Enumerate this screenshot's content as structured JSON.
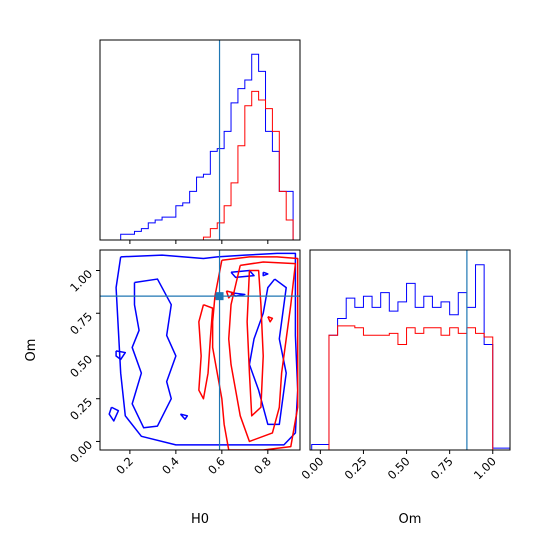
{
  "chart_data": {
    "type": "corner",
    "parameters": [
      "H0",
      "Om"
    ],
    "truth": {
      "H0": 0.59,
      "Om": 0.85,
      "color": "#1f77b4"
    },
    "colors": {
      "blue": "#0000ff",
      "red": "#ff0000",
      "truth": "#1f77b4"
    },
    "panels": {
      "hist_H0": {
        "xlim": [
          0.07,
          0.94
        ],
        "edges": [
          0.1,
          0.13,
          0.16,
          0.19,
          0.22,
          0.25,
          0.28,
          0.31,
          0.34,
          0.37,
          0.4,
          0.43,
          0.46,
          0.49,
          0.52,
          0.55,
          0.58,
          0.61,
          0.64,
          0.67,
          0.7,
          0.73,
          0.76,
          0.79,
          0.82,
          0.85,
          0.88,
          0.91,
          0.94
        ],
        "series": [
          {
            "color": "blue",
            "values": [
              0,
              0,
              0.02,
              0.02,
              0.03,
              0.04,
              0.06,
              0.07,
              0.08,
              0.08,
              0.12,
              0.13,
              0.17,
              0.22,
              0.23,
              0.31,
              0.32,
              0.38,
              0.48,
              0.53,
              0.56,
              0.65,
              0.59,
              0.38,
              0.31,
              0.17,
              0.17,
              0.0
            ]
          },
          {
            "color": "red",
            "values": [
              0,
              0,
              0,
              0,
              0,
              0,
              0,
              0,
              0,
              0,
              0,
              0,
              0,
              0,
              0.01,
              0.04,
              0.06,
              0.12,
              0.2,
              0.33,
              0.47,
              0.52,
              0.49,
              0.46,
              0.38,
              0.17,
              0.07,
              0.0
            ]
          }
        ]
      },
      "hist_Om": {
        "xlim": [
          -0.06,
          1.1
        ],
        "edges": [
          -0.05,
          0.0,
          0.05,
          0.1,
          0.15,
          0.2,
          0.25,
          0.3,
          0.35,
          0.4,
          0.45,
          0.5,
          0.55,
          0.6,
          0.65,
          0.7,
          0.75,
          0.8,
          0.85,
          0.9,
          0.95,
          1.0,
          1.05,
          1.1
        ],
        "series": [
          {
            "color": "blue",
            "values": [
              0.03,
              0.03,
              0.62,
              0.71,
              0.82,
              0.77,
              0.83,
              0.77,
              0.85,
              0.75,
              0.8,
              0.9,
              0.77,
              0.83,
              0.77,
              0.8,
              0.73,
              0.85,
              0.77,
              1.0,
              0.57,
              0.01,
              0.01
            ]
          },
          {
            "color": "red",
            "values": [
              0,
              0,
              0.62,
              0.67,
              0.67,
              0.66,
              0.62,
              0.62,
              0.62,
              0.63,
              0.57,
              0.66,
              0.63,
              0.66,
              0.66,
              0.62,
              0.66,
              0.63,
              0.66,
              0.63,
              0.61,
              0,
              0
            ]
          }
        ]
      },
      "scatter_H0_Om": {
        "xlim": [
          0.07,
          0.94
        ],
        "ylim": [
          -0.05,
          1.12
        ],
        "contours": [
          {
            "color": "blue",
            "points": [
              [
                0.16,
                1.08
              ],
              [
                0.34,
                1.09
              ],
              [
                0.52,
                1.07
              ],
              [
                0.58,
                1.08
              ],
              [
                0.7,
                1.09
              ],
              [
                0.84,
                1.1
              ],
              [
                0.92,
                1.1
              ],
              [
                0.92,
                0.62
              ],
              [
                0.93,
                0.3
              ],
              [
                0.92,
                0.05
              ],
              [
                0.87,
                -0.02
              ],
              [
                0.72,
                -0.02
              ],
              [
                0.55,
                -0.02
              ],
              [
                0.4,
                -0.02
              ],
              [
                0.25,
                0.03
              ],
              [
                0.18,
                0.15
              ],
              [
                0.16,
                0.4
              ],
              [
                0.15,
                0.65
              ],
              [
                0.14,
                0.9
              ],
              [
                0.16,
                1.08
              ]
            ]
          },
          {
            "color": "blue",
            "points": [
              [
                0.22,
                0.93
              ],
              [
                0.32,
                0.95
              ],
              [
                0.38,
                0.8
              ],
              [
                0.36,
                0.62
              ],
              [
                0.4,
                0.5
              ],
              [
                0.36,
                0.35
              ],
              [
                0.38,
                0.25
              ],
              [
                0.32,
                0.09
              ],
              [
                0.26,
                0.08
              ],
              [
                0.21,
                0.22
              ],
              [
                0.25,
                0.4
              ],
              [
                0.21,
                0.55
              ],
              [
                0.24,
                0.65
              ],
              [
                0.22,
                0.8
              ],
              [
                0.22,
                0.93
              ]
            ]
          },
          {
            "color": "blue",
            "points": [
              [
                0.83,
                0.95
              ],
              [
                0.88,
                0.9
              ],
              [
                0.85,
                0.6
              ],
              [
                0.88,
                0.4
              ],
              [
                0.85,
                0.1
              ],
              [
                0.8,
                0.1
              ],
              [
                0.76,
                0.3
              ],
              [
                0.72,
                0.45
              ],
              [
                0.74,
                0.6
              ],
              [
                0.78,
                0.75
              ],
              [
                0.8,
                0.9
              ],
              [
                0.83,
                0.95
              ]
            ]
          },
          {
            "color": "blue",
            "points": [
              [
                0.64,
                0.99
              ],
              [
                0.72,
                1.0
              ],
              [
                0.74,
                0.97
              ],
              [
                0.66,
                0.96
              ],
              [
                0.64,
                0.99
              ]
            ]
          },
          {
            "color": "blue",
            "points": [
              [
                0.14,
                0.53
              ],
              [
                0.18,
                0.52
              ],
              [
                0.16,
                0.48
              ],
              [
                0.14,
                0.5
              ],
              [
                0.14,
                0.53
              ]
            ]
          },
          {
            "color": "blue",
            "points": [
              [
                0.12,
                0.2
              ],
              [
                0.15,
                0.18
              ],
              [
                0.13,
                0.12
              ],
              [
                0.11,
                0.16
              ],
              [
                0.12,
                0.2
              ]
            ]
          },
          {
            "color": "blue",
            "points": [
              [
                0.42,
                0.16
              ],
              [
                0.45,
                0.15
              ],
              [
                0.44,
                0.13
              ],
              [
                0.42,
                0.16
              ]
            ]
          },
          {
            "color": "blue",
            "points": [
              [
                0.64,
                0.87
              ],
              [
                0.7,
                0.86
              ],
              [
                0.66,
                0.85
              ],
              [
                0.64,
                0.87
              ]
            ]
          },
          {
            "color": "blue",
            "points": [
              [
                0.78,
                0.99
              ],
              [
                0.8,
                0.98
              ],
              [
                0.78,
                0.97
              ],
              [
                0.78,
                0.99
              ]
            ]
          },
          {
            "color": "red",
            "points": [
              [
                0.6,
                1.06
              ],
              [
                0.72,
                1.08
              ],
              [
                0.84,
                1.08
              ],
              [
                0.93,
                1.07
              ],
              [
                0.93,
                0.6
              ],
              [
                0.93,
                0.2
              ],
              [
                0.9,
                -0.03
              ],
              [
                0.78,
                -0.05
              ],
              [
                0.63,
                -0.05
              ],
              [
                0.61,
                0.1
              ],
              [
                0.6,
                0.25
              ],
              [
                0.58,
                0.4
              ],
              [
                0.56,
                0.55
              ],
              [
                0.56,
                0.7
              ],
              [
                0.57,
                0.85
              ],
              [
                0.6,
                1.06
              ]
            ]
          },
          {
            "color": "red",
            "points": [
              [
                0.68,
                1.03
              ],
              [
                0.78,
                1.05
              ],
              [
                0.92,
                1.04
              ],
              [
                0.9,
                0.8
              ],
              [
                0.88,
                0.6
              ],
              [
                0.86,
                0.4
              ],
              [
                0.85,
                0.2
              ],
              [
                0.82,
                0.05
              ],
              [
                0.72,
                0.0
              ],
              [
                0.68,
                0.15
              ],
              [
                0.66,
                0.3
              ],
              [
                0.64,
                0.45
              ],
              [
                0.63,
                0.6
              ],
              [
                0.64,
                0.8
              ],
              [
                0.68,
                1.03
              ]
            ]
          },
          {
            "color": "red",
            "points": [
              [
                0.72,
                1.0
              ],
              [
                0.76,
                1.0
              ],
              [
                0.77,
                0.8
              ],
              [
                0.78,
                0.5
              ],
              [
                0.77,
                0.2
              ],
              [
                0.73,
                0.15
              ],
              [
                0.72,
                0.4
              ],
              [
                0.71,
                0.7
              ],
              [
                0.72,
                1.0
              ]
            ]
          },
          {
            "color": "red",
            "points": [
              [
                0.52,
                0.8
              ],
              [
                0.56,
                0.78
              ],
              [
                0.55,
                0.6
              ],
              [
                0.54,
                0.4
              ],
              [
                0.52,
                0.25
              ],
              [
                0.5,
                0.3
              ],
              [
                0.51,
                0.5
              ],
              [
                0.5,
                0.7
              ],
              [
                0.52,
                0.8
              ]
            ]
          },
          {
            "color": "red",
            "points": [
              [
                0.62,
                0.88
              ],
              [
                0.65,
                0.87
              ],
              [
                0.63,
                0.84
              ],
              [
                0.62,
                0.88
              ]
            ]
          },
          {
            "color": "red",
            "points": [
              [
                0.8,
                0.73
              ],
              [
                0.82,
                0.72
              ],
              [
                0.81,
                0.7
              ],
              [
                0.8,
                0.73
              ]
            ]
          }
        ]
      }
    },
    "axes": {
      "scatter_x": {
        "label": "H0",
        "ticks": [
          0.2,
          0.4,
          0.6,
          0.8
        ],
        "ticklabels": [
          "0.2",
          "0.4",
          "0.6",
          "0.8"
        ]
      },
      "scatter_y": {
        "label": "Om",
        "ticks": [
          0.0,
          0.25,
          0.5,
          0.75,
          1.0
        ],
        "ticklabels": [
          "0.00",
          "0.25",
          "0.50",
          "0.75",
          "1.00"
        ]
      },
      "om_x": {
        "label": "Om",
        "ticks": [
          0.0,
          0.25,
          0.5,
          0.75,
          1.0
        ],
        "ticklabels": [
          "0.00",
          "0.25",
          "0.50",
          "0.75",
          "1.00"
        ]
      }
    }
  }
}
